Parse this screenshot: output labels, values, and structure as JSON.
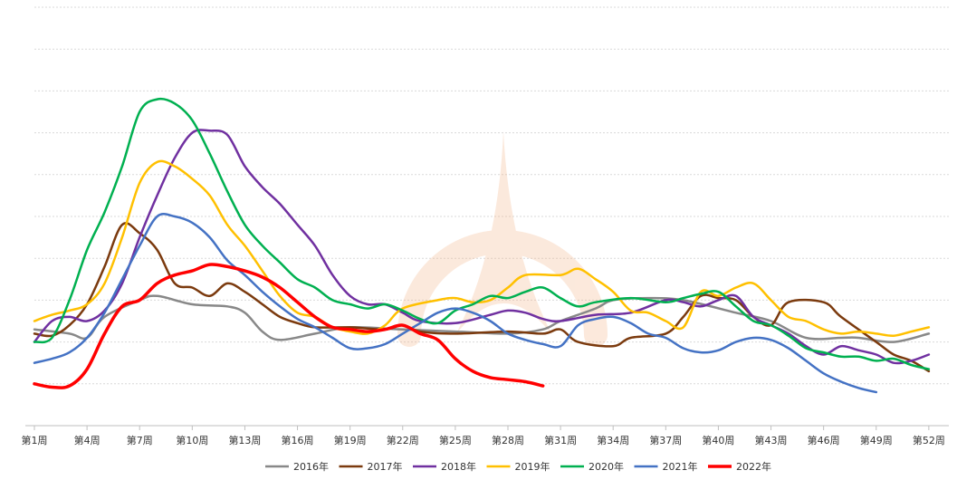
{
  "chart_data": {
    "type": "line",
    "title": "",
    "xlabel": "",
    "ylabel": "",
    "grid": true,
    "legend_position": "bottom",
    "x_tick_labels": [
      "第1周",
      "第4周",
      "第7周",
      "第10周",
      "第13周",
      "第16周",
      "第19周",
      "第22周",
      "第25周",
      "第28周",
      "第31周",
      "第34周",
      "第37周",
      "第40周",
      "第43周",
      "第46周",
      "第49周",
      "第52周"
    ],
    "ylim": [
      0,
      10
    ],
    "series": [
      {
        "name": "2016年",
        "color": "#888888",
        "width": 2.5,
        "points": [
          [
            1,
            2.3
          ],
          [
            3,
            2.2
          ],
          [
            4,
            2.1
          ],
          [
            5,
            2.6
          ],
          [
            7,
            3.0
          ],
          [
            8,
            3.1
          ],
          [
            10,
            2.9
          ],
          [
            12,
            2.85
          ],
          [
            13,
            2.7
          ],
          [
            14,
            2.25
          ],
          [
            15,
            2.05
          ],
          [
            17,
            2.2
          ],
          [
            19,
            2.35
          ],
          [
            22,
            2.3
          ],
          [
            25,
            2.25
          ],
          [
            28,
            2.2
          ],
          [
            30,
            2.3
          ],
          [
            31,
            2.5
          ],
          [
            33,
            2.8
          ],
          [
            34,
            3.0
          ],
          [
            36,
            3.05
          ],
          [
            38,
            3.0
          ],
          [
            41,
            2.7
          ],
          [
            43,
            2.5
          ],
          [
            45,
            2.1
          ],
          [
            47,
            2.1
          ],
          [
            48,
            2.1
          ],
          [
            50,
            2.0
          ],
          [
            52,
            2.2
          ]
        ]
      },
      {
        "name": "2017年",
        "color": "#7B3A0E",
        "width": 2.5,
        "points": [
          [
            1,
            2.2
          ],
          [
            2,
            2.15
          ],
          [
            3,
            2.4
          ],
          [
            4,
            2.9
          ],
          [
            5,
            3.8
          ],
          [
            6,
            4.8
          ],
          [
            7,
            4.6
          ],
          [
            8,
            4.2
          ],
          [
            9,
            3.4
          ],
          [
            10,
            3.3
          ],
          [
            11,
            3.1
          ],
          [
            12,
            3.4
          ],
          [
            13,
            3.2
          ],
          [
            14,
            2.9
          ],
          [
            15,
            2.6
          ],
          [
            16,
            2.45
          ],
          [
            17,
            2.35
          ],
          [
            19,
            2.35
          ],
          [
            21,
            2.3
          ],
          [
            22,
            2.4
          ],
          [
            23,
            2.25
          ],
          [
            25,
            2.2
          ],
          [
            28,
            2.25
          ],
          [
            30,
            2.2
          ],
          [
            31,
            2.3
          ],
          [
            32,
            2.0
          ],
          [
            34,
            1.9
          ],
          [
            35,
            2.1
          ],
          [
            37,
            2.2
          ],
          [
            38,
            2.6
          ],
          [
            39,
            3.1
          ],
          [
            40,
            3.05
          ],
          [
            41,
            3.0
          ],
          [
            42,
            2.6
          ],
          [
            43,
            2.4
          ],
          [
            44,
            2.95
          ],
          [
            46,
            2.95
          ],
          [
            47,
            2.6
          ],
          [
            49,
            2.0
          ],
          [
            50,
            1.7
          ],
          [
            51,
            1.55
          ],
          [
            52,
            1.3
          ]
        ]
      },
      {
        "name": "2018年",
        "color": "#7030A0",
        "width": 2.5,
        "points": [
          [
            1,
            2.0
          ],
          [
            2,
            2.5
          ],
          [
            3,
            2.6
          ],
          [
            4,
            2.5
          ],
          [
            5,
            2.75
          ],
          [
            6,
            3.4
          ],
          [
            7,
            4.5
          ],
          [
            8,
            5.5
          ],
          [
            9,
            6.4
          ],
          [
            10,
            7.0
          ],
          [
            11,
            7.05
          ],
          [
            12,
            6.95
          ],
          [
            13,
            6.2
          ],
          [
            14,
            5.7
          ],
          [
            15,
            5.3
          ],
          [
            16,
            4.8
          ],
          [
            17,
            4.3
          ],
          [
            18,
            3.6
          ],
          [
            19,
            3.1
          ],
          [
            20,
            2.9
          ],
          [
            21,
            2.9
          ],
          [
            22,
            2.7
          ],
          [
            23,
            2.5
          ],
          [
            25,
            2.45
          ],
          [
            27,
            2.65
          ],
          [
            28,
            2.75
          ],
          [
            29,
            2.7
          ],
          [
            30,
            2.55
          ],
          [
            31,
            2.5
          ],
          [
            33,
            2.65
          ],
          [
            35,
            2.7
          ],
          [
            37,
            3.0
          ],
          [
            38,
            2.95
          ],
          [
            39,
            2.85
          ],
          [
            40,
            3.0
          ],
          [
            41,
            3.1
          ],
          [
            42,
            2.6
          ],
          [
            43,
            2.4
          ],
          [
            44,
            2.2
          ],
          [
            45,
            1.9
          ],
          [
            46,
            1.7
          ],
          [
            47,
            1.9
          ],
          [
            48,
            1.8
          ],
          [
            49,
            1.7
          ],
          [
            50,
            1.5
          ],
          [
            51,
            1.55
          ],
          [
            52,
            1.7
          ]
        ]
      },
      {
        "name": "2019年",
        "color": "#FFC000",
        "width": 2.5,
        "points": [
          [
            1,
            2.5
          ],
          [
            2,
            2.65
          ],
          [
            3,
            2.75
          ],
          [
            4,
            2.9
          ],
          [
            5,
            3.4
          ],
          [
            6,
            4.5
          ],
          [
            7,
            5.8
          ],
          [
            8,
            6.3
          ],
          [
            9,
            6.2
          ],
          [
            10,
            5.9
          ],
          [
            11,
            5.5
          ],
          [
            12,
            4.8
          ],
          [
            13,
            4.3
          ],
          [
            14,
            3.7
          ],
          [
            15,
            3.1
          ],
          [
            16,
            2.7
          ],
          [
            17,
            2.6
          ],
          [
            18,
            2.35
          ],
          [
            19,
            2.25
          ],
          [
            20,
            2.2
          ],
          [
            21,
            2.4
          ],
          [
            22,
            2.8
          ],
          [
            24,
            3.0
          ],
          [
            25,
            3.05
          ],
          [
            26,
            2.95
          ],
          [
            27,
            3.0
          ],
          [
            28,
            3.3
          ],
          [
            29,
            3.6
          ],
          [
            31,
            3.6
          ],
          [
            32,
            3.75
          ],
          [
            33,
            3.5
          ],
          [
            34,
            3.2
          ],
          [
            35,
            2.75
          ],
          [
            36,
            2.7
          ],
          [
            37,
            2.5
          ],
          [
            38,
            2.35
          ],
          [
            39,
            3.2
          ],
          [
            40,
            3.1
          ],
          [
            41,
            3.3
          ],
          [
            42,
            3.4
          ],
          [
            43,
            3.0
          ],
          [
            44,
            2.6
          ],
          [
            45,
            2.5
          ],
          [
            46,
            2.3
          ],
          [
            47,
            2.2
          ],
          [
            48,
            2.25
          ],
          [
            49,
            2.2
          ],
          [
            50,
            2.15
          ],
          [
            51,
            2.25
          ],
          [
            52,
            2.35
          ]
        ]
      },
      {
        "name": "2020年",
        "color": "#00B050",
        "width": 2.5,
        "points": [
          [
            1,
            2.0
          ],
          [
            2,
            2.1
          ],
          [
            3,
            3.0
          ],
          [
            4,
            4.2
          ],
          [
            5,
            5.1
          ],
          [
            6,
            6.2
          ],
          [
            7,
            7.5
          ],
          [
            8,
            7.8
          ],
          [
            9,
            7.7
          ],
          [
            10,
            7.3
          ],
          [
            11,
            6.5
          ],
          [
            12,
            5.6
          ],
          [
            13,
            4.8
          ],
          [
            14,
            4.3
          ],
          [
            15,
            3.9
          ],
          [
            16,
            3.5
          ],
          [
            17,
            3.3
          ],
          [
            18,
            3.0
          ],
          [
            19,
            2.9
          ],
          [
            20,
            2.8
          ],
          [
            21,
            2.9
          ],
          [
            22,
            2.75
          ],
          [
            23,
            2.55
          ],
          [
            24,
            2.45
          ],
          [
            25,
            2.75
          ],
          [
            26,
            2.9
          ],
          [
            27,
            3.1
          ],
          [
            28,
            3.05
          ],
          [
            29,
            3.2
          ],
          [
            30,
            3.3
          ],
          [
            31,
            3.05
          ],
          [
            32,
            2.85
          ],
          [
            33,
            2.95
          ],
          [
            35,
            3.05
          ],
          [
            37,
            2.95
          ],
          [
            38,
            3.05
          ],
          [
            39,
            3.15
          ],
          [
            40,
            3.2
          ],
          [
            41,
            2.85
          ],
          [
            42,
            2.5
          ],
          [
            43,
            2.4
          ],
          [
            44,
            2.15
          ],
          [
            45,
            1.85
          ],
          [
            46,
            1.75
          ],
          [
            47,
            1.65
          ],
          [
            48,
            1.65
          ],
          [
            49,
            1.55
          ],
          [
            50,
            1.6
          ],
          [
            51,
            1.45
          ],
          [
            52,
            1.35
          ]
        ]
      },
      {
        "name": "2021年",
        "color": "#4472C4",
        "width": 2.5,
        "points": [
          [
            1,
            1.5
          ],
          [
            2,
            1.6
          ],
          [
            3,
            1.75
          ],
          [
            4,
            2.1
          ],
          [
            5,
            2.7
          ],
          [
            6,
            3.5
          ],
          [
            7,
            4.3
          ],
          [
            8,
            5.0
          ],
          [
            9,
            5.0
          ],
          [
            10,
            4.85
          ],
          [
            11,
            4.5
          ],
          [
            12,
            3.95
          ],
          [
            13,
            3.6
          ],
          [
            14,
            3.2
          ],
          [
            15,
            2.85
          ],
          [
            16,
            2.55
          ],
          [
            17,
            2.35
          ],
          [
            18,
            2.1
          ],
          [
            19,
            1.85
          ],
          [
            20,
            1.85
          ],
          [
            21,
            1.95
          ],
          [
            22,
            2.2
          ],
          [
            23,
            2.45
          ],
          [
            24,
            2.7
          ],
          [
            25,
            2.8
          ],
          [
            26,
            2.7
          ],
          [
            27,
            2.5
          ],
          [
            28,
            2.2
          ],
          [
            29,
            2.05
          ],
          [
            30,
            1.95
          ],
          [
            31,
            1.9
          ],
          [
            32,
            2.4
          ],
          [
            33,
            2.55
          ],
          [
            34,
            2.6
          ],
          [
            35,
            2.45
          ],
          [
            36,
            2.2
          ],
          [
            37,
            2.1
          ],
          [
            38,
            1.85
          ],
          [
            39,
            1.75
          ],
          [
            40,
            1.8
          ],
          [
            41,
            2.0
          ],
          [
            42,
            2.1
          ],
          [
            43,
            2.05
          ],
          [
            44,
            1.85
          ],
          [
            45,
            1.55
          ],
          [
            46,
            1.25
          ],
          [
            47,
            1.05
          ],
          [
            48,
            0.9
          ],
          [
            49,
            0.8
          ]
        ]
      },
      {
        "name": "2022年",
        "color": "#FF0000",
        "width": 3.5,
        "points": [
          [
            1,
            1.0
          ],
          [
            2,
            0.92
          ],
          [
            3,
            0.95
          ],
          [
            4,
            1.35
          ],
          [
            5,
            2.2
          ],
          [
            6,
            2.85
          ],
          [
            7,
            3.0
          ],
          [
            8,
            3.4
          ],
          [
            9,
            3.6
          ],
          [
            10,
            3.7
          ],
          [
            11,
            3.85
          ],
          [
            12,
            3.8
          ],
          [
            13,
            3.7
          ],
          [
            14,
            3.55
          ],
          [
            15,
            3.3
          ],
          [
            16,
            2.95
          ],
          [
            17,
            2.6
          ],
          [
            18,
            2.35
          ],
          [
            19,
            2.3
          ],
          [
            20,
            2.25
          ],
          [
            21,
            2.3
          ],
          [
            22,
            2.4
          ],
          [
            23,
            2.2
          ],
          [
            24,
            2.05
          ],
          [
            25,
            1.6
          ],
          [
            26,
            1.3
          ],
          [
            27,
            1.15
          ],
          [
            28,
            1.1
          ],
          [
            29,
            1.05
          ],
          [
            30,
            0.95
          ]
        ]
      }
    ]
  }
}
